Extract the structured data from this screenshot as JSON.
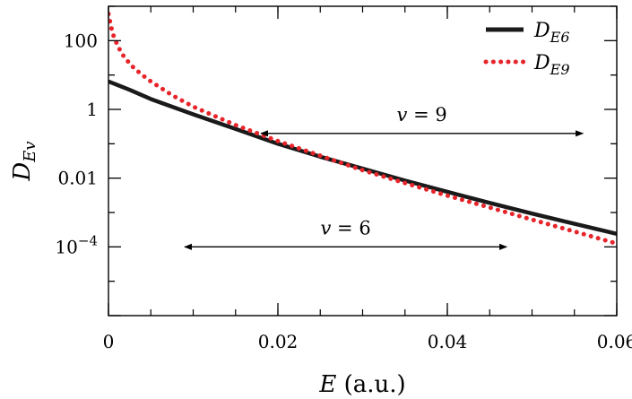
{
  "chart_data": {
    "type": "line",
    "xlabel": {
      "symbol": "E",
      "unit": "(a.u.)"
    },
    "ylabel": {
      "symbol": "D",
      "subscript": "Ev"
    },
    "xlim": [
      0,
      0.06
    ],
    "ylim": [
      1e-06,
      1000
    ],
    "yscale": "log",
    "x_ticks": [
      {
        "value": 0,
        "label": "0"
      },
      {
        "value": 0.02,
        "label": "0.02"
      },
      {
        "value": 0.04,
        "label": "0.04"
      },
      {
        "value": 0.06,
        "label": "0.06"
      }
    ],
    "y_ticks": [
      {
        "value": 0.0001,
        "base": "10",
        "exp": "−4"
      },
      {
        "value": 0.01,
        "label": "0.01"
      },
      {
        "value": 1,
        "label": "1"
      },
      {
        "value": 100,
        "label": "100"
      }
    ],
    "grid": false,
    "legend": {
      "position": "top-right"
    },
    "series": [
      {
        "name": "D",
        "sub": "E6",
        "style": "solid",
        "color": "#1a1a1a",
        "x": [
          0,
          0.0025,
          0.005,
          0.0075,
          0.01,
          0.015,
          0.02,
          0.025,
          0.03,
          0.035,
          0.04,
          0.045,
          0.05,
          0.055,
          0.06
        ],
        "y": [
          6.5,
          3.7,
          2.0,
          1.2,
          0.72,
          0.27,
          0.1,
          0.042,
          0.019,
          0.0085,
          0.004,
          0.0019,
          0.00093,
          0.00047,
          0.00024
        ]
      },
      {
        "name": "D",
        "sub": "E9",
        "style": "dotted",
        "color": "#e8242b",
        "x": [
          0,
          0.00025,
          0.0005,
          0.001,
          0.0015,
          0.002,
          0.003,
          0.004,
          0.005,
          0.0075,
          0.01,
          0.015,
          0.02,
          0.025,
          0.03,
          0.035,
          0.04,
          0.045,
          0.05,
          0.055,
          0.06
        ],
        "y": [
          600,
          300,
          160,
          80,
          45,
          30,
          16,
          10,
          6.5,
          2.6,
          1.2,
          0.35,
          0.12,
          0.045,
          0.017,
          0.0072,
          0.0031,
          0.0014,
          0.00062,
          0.00028,
          0.000125
        ]
      }
    ],
    "annotations": [
      {
        "text_var": "v",
        "text_value": "= 9",
        "x_from": 0.018,
        "x_to": 0.056,
        "y": 0.2
      },
      {
        "text_var": "v",
        "text_value": "= 6",
        "x_from": 0.009,
        "x_to": 0.047,
        "y": 0.0001
      }
    ]
  }
}
